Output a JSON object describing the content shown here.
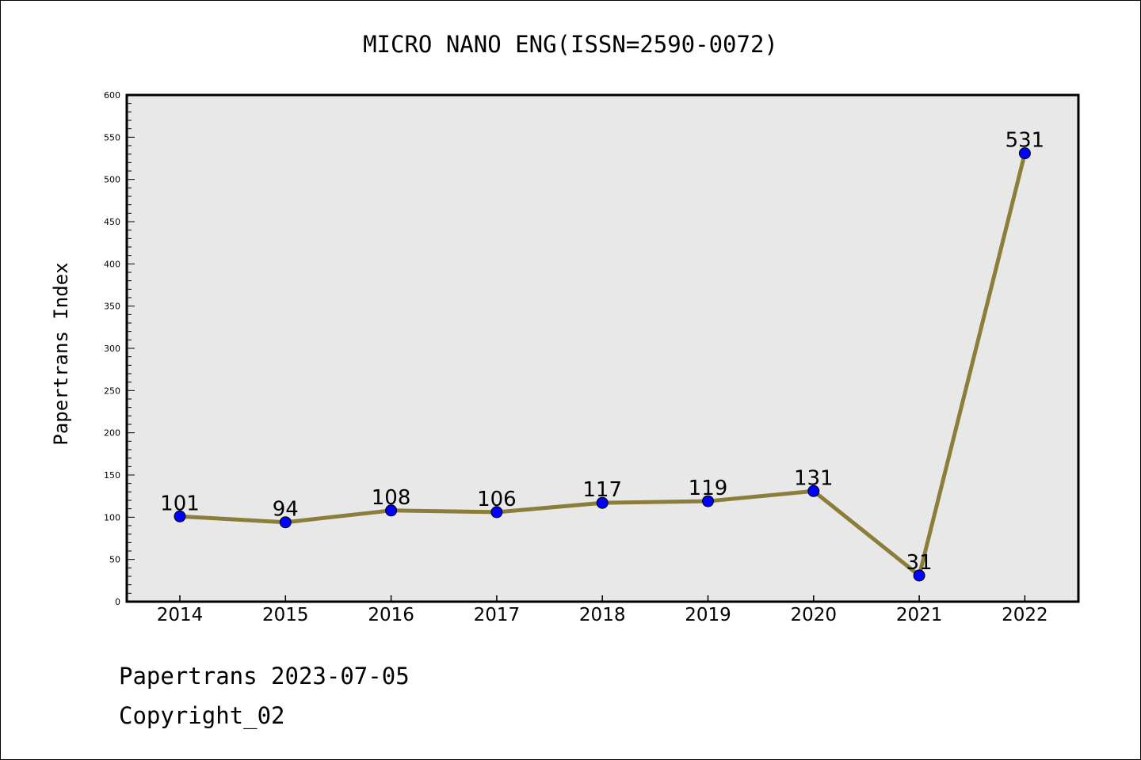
{
  "chart_data": {
    "type": "line",
    "title": "MICRO NANO ENG(ISSN=2590-0072)",
    "xlabel": "",
    "ylabel": "Papertrans Index",
    "x": [
      "2014",
      "2015",
      "2016",
      "2017",
      "2018",
      "2019",
      "2020",
      "2021",
      "2022"
    ],
    "values": [
      101,
      94,
      108,
      106,
      117,
      119,
      131,
      31,
      531
    ],
    "data_labels": [
      "101",
      "94",
      "108",
      "106",
      "117",
      "119",
      "131",
      "31",
      "531"
    ],
    "ylim": [
      0,
      600
    ],
    "yticks": [
      0,
      50,
      100,
      150,
      200,
      250,
      300,
      350,
      400,
      450,
      500,
      550,
      600
    ],
    "grid": false,
    "colors": {
      "line": "#8b7d3a",
      "marker": "#0000ff",
      "plot_background": "#e8e8e8",
      "axes": "#000000"
    }
  },
  "footer": {
    "line1": "Papertrans 2023-07-05",
    "line2": "Copyright_02"
  }
}
